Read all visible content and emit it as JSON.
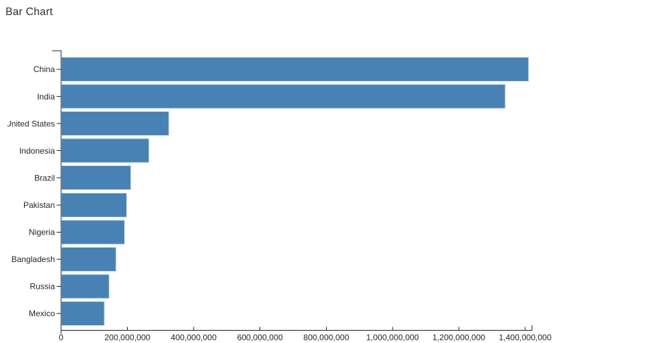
{
  "page": {
    "background": "#ffffff"
  },
  "chart_data": {
    "type": "bar",
    "orientation": "horizontal",
    "title": "Bar Chart",
    "xlabel": "",
    "ylabel": "",
    "grid": false,
    "legend": false,
    "categories": [
      "China",
      "India",
      "United States",
      "Indonesia",
      "Brazil",
      "Pakistan",
      "Nigeria",
      "Bangladesh",
      "Russia",
      "Mexico"
    ],
    "values": [
      1409517397,
      1339180127,
      324459463,
      263991379,
      209288278,
      197015955,
      190886311,
      164669751,
      143989754,
      129163276
    ],
    "xlim": [
      0,
      1400000000
    ],
    "xticks": [
      0,
      200000000,
      400000000,
      600000000,
      800000000,
      1000000000,
      1200000000,
      1400000000
    ],
    "xtick_labels": [
      "0",
      "200,000,000",
      "400,000,000",
      "600,000,000",
      "800,000,000",
      "1,000,000,000",
      "1,200,000,000",
      "1,400,000,000"
    ],
    "bar_color": "#4682b4",
    "bar_border_color": "#cdddee",
    "axis_color": "#1f1f1f",
    "label_color": "#262626"
  }
}
